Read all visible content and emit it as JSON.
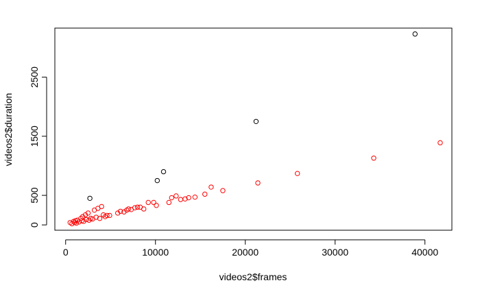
{
  "chart_data": {
    "type": "scatter",
    "title": "",
    "xlabel": "videos2$frames",
    "ylabel": "videos2$duration",
    "xlim": [
      -1200,
      43000
    ],
    "ylim": [
      -90,
      3330
    ],
    "x_ticks": [
      0,
      10000,
      20000,
      30000,
      40000
    ],
    "y_ticks": [
      0,
      500,
      1500,
      2500
    ],
    "grid": false,
    "legend": "none",
    "series": [
      {
        "color": "#000000",
        "points": [
          [
            2700,
            450
          ],
          [
            10200,
            750
          ],
          [
            10900,
            900
          ],
          [
            21200,
            1750
          ],
          [
            38900,
            3230
          ]
        ]
      },
      {
        "color": "#ff0000",
        "points": [
          [
            500,
            40
          ],
          [
            700,
            20
          ],
          [
            900,
            60
          ],
          [
            1000,
            40
          ],
          [
            1100,
            70
          ],
          [
            1200,
            30
          ],
          [
            1300,
            80
          ],
          [
            1500,
            50
          ],
          [
            1700,
            110
          ],
          [
            1800,
            70
          ],
          [
            1900,
            140
          ],
          [
            2000,
            60
          ],
          [
            2200,
            170
          ],
          [
            2300,
            90
          ],
          [
            2500,
            200
          ],
          [
            2600,
            80
          ],
          [
            2800,
            110
          ],
          [
            3000,
            100
          ],
          [
            3200,
            250
          ],
          [
            3400,
            130
          ],
          [
            3600,
            280
          ],
          [
            3800,
            110
          ],
          [
            4000,
            310
          ],
          [
            4200,
            170
          ],
          [
            4400,
            140
          ],
          [
            4600,
            160
          ],
          [
            4900,
            160
          ],
          [
            5800,
            200
          ],
          [
            6100,
            230
          ],
          [
            6500,
            220
          ],
          [
            6800,
            250
          ],
          [
            7000,
            270
          ],
          [
            7300,
            260
          ],
          [
            7700,
            290
          ],
          [
            8000,
            300
          ],
          [
            8300,
            300
          ],
          [
            8700,
            270
          ],
          [
            9200,
            380
          ],
          [
            9800,
            380
          ],
          [
            10100,
            330
          ],
          [
            11500,
            380
          ],
          [
            11800,
            460
          ],
          [
            12300,
            490
          ],
          [
            12800,
            430
          ],
          [
            13300,
            440
          ],
          [
            13700,
            460
          ],
          [
            14400,
            470
          ],
          [
            15500,
            520
          ],
          [
            16200,
            640
          ],
          [
            17500,
            580
          ],
          [
            21400,
            710
          ],
          [
            25800,
            870
          ],
          [
            34300,
            1130
          ],
          [
            41700,
            1390
          ]
        ]
      }
    ]
  }
}
